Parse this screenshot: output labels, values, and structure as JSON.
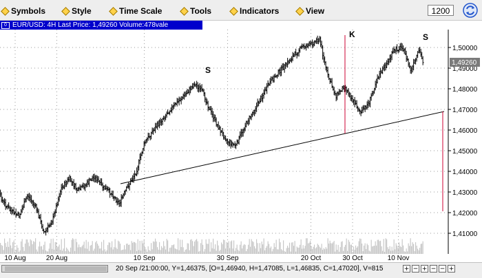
{
  "menu": {
    "items": [
      {
        "label": "Symbols",
        "name": "symbols"
      },
      {
        "label": "Style",
        "name": "style"
      },
      {
        "label": "Time Scale",
        "name": "time-scale"
      },
      {
        "label": "Tools",
        "name": "tools"
      },
      {
        "label": "Indicators",
        "name": "indicators"
      },
      {
        "label": "View",
        "name": "view"
      }
    ],
    "interval_value": "1200"
  },
  "header": {
    "icon": "0",
    "text": "EUR/USD: 4H Last Price: 1,49260 Volume:478vale"
  },
  "annotations": {
    "s_left": "S",
    "k_mid": "K",
    "s_right": "S"
  },
  "price_label": "1,49260",
  "status": {
    "text": "20 Sep /21:00:00,  Y=1,46375, [O=1,46940, H=1,47085, L=1,46835, C=1,47020], V=815"
  },
  "colors": {
    "header_bg": "#0000cc",
    "candle": "#000000",
    "trendline": "#000000",
    "marker": "#cc0033"
  },
  "chart_data": {
    "type": "line",
    "y_ticks": [
      "1,50000",
      "1,49000",
      "1,48000",
      "1,47000",
      "1,46000",
      "1,45000",
      "1,44000",
      "1,43000",
      "1,42000",
      "1,41000"
    ],
    "x_ticks": [
      "10 Aug",
      "20 Aug",
      "10 Sep",
      "30 Sep",
      "20 Oct",
      "30 Oct",
      "10 Nov"
    ],
    "ylim": [
      1.405,
      1.5075
    ],
    "grid": true,
    "points": [
      {
        "x": "03 Aug",
        "y": 1.442
      },
      {
        "x": "05 Aug",
        "y": 1.4355
      },
      {
        "x": "07 Aug",
        "y": 1.4255
      },
      {
        "x": "09 Aug",
        "y": 1.4205
      },
      {
        "x": "11 Aug",
        "y": 1.4185
      },
      {
        "x": "13 Aug",
        "y": 1.4285
      },
      {
        "x": "15 Aug",
        "y": 1.4225
      },
      {
        "x": "17 Aug",
        "y": 1.41
      },
      {
        "x": "19 Aug",
        "y": 1.4165
      },
      {
        "x": "21 Aug",
        "y": 1.4315
      },
      {
        "x": "23 Aug",
        "y": 1.4365
      },
      {
        "x": "25 Aug",
        "y": 1.4305
      },
      {
        "x": "27 Aug",
        "y": 1.4335
      },
      {
        "x": "29 Aug",
        "y": 1.4375
      },
      {
        "x": "31 Aug",
        "y": 1.4325
      },
      {
        "x": "02 Sep",
        "y": 1.4295
      },
      {
        "x": "04 Sep",
        "y": 1.4245
      },
      {
        "x": "06 Sep",
        "y": 1.4325
      },
      {
        "x": "08 Sep",
        "y": 1.4395
      },
      {
        "x": "10 Sep",
        "y": 1.4535
      },
      {
        "x": "12 Sep",
        "y": 1.4595
      },
      {
        "x": "14 Sep",
        "y": 1.4645
      },
      {
        "x": "16 Sep",
        "y": 1.4695
      },
      {
        "x": "18 Sep",
        "y": 1.4735
      },
      {
        "x": "20 Sep",
        "y": 1.4775
      },
      {
        "x": "22 Sep",
        "y": 1.4825
      },
      {
        "x": "24 Sep",
        "y": 1.4785
      },
      {
        "x": "26 Sep",
        "y": 1.4685
      },
      {
        "x": "28 Sep",
        "y": 1.4605
      },
      {
        "x": "30 Sep",
        "y": 1.4545
      },
      {
        "x": "02 Oct",
        "y": 1.4525
      },
      {
        "x": "04 Oct",
        "y": 1.4615
      },
      {
        "x": "06 Oct",
        "y": 1.4685
      },
      {
        "x": "08 Oct",
        "y": 1.4755
      },
      {
        "x": "10 Oct",
        "y": 1.4825
      },
      {
        "x": "12 Oct",
        "y": 1.4875
      },
      {
        "x": "14 Oct",
        "y": 1.4915
      },
      {
        "x": "16 Oct",
        "y": 1.4965
      },
      {
        "x": "18 Oct",
        "y": 1.5005
      },
      {
        "x": "20 Oct",
        "y": 1.5015
      },
      {
        "x": "22 Oct",
        "y": 1.5045
      },
      {
        "x": "24 Oct",
        "y": 1.4865
      },
      {
        "x": "26 Oct",
        "y": 1.4765
      },
      {
        "x": "28 Oct",
        "y": 1.4815
      },
      {
        "x": "30 Oct",
        "y": 1.4745
      },
      {
        "x": "01 Nov",
        "y": 1.4685
      },
      {
        "x": "03 Nov",
        "y": 1.4735
      },
      {
        "x": "05 Nov",
        "y": 1.4855
      },
      {
        "x": "07 Nov",
        "y": 1.4915
      },
      {
        "x": "09 Nov",
        "y": 1.4985
      },
      {
        "x": "11 Nov",
        "y": 1.5005
      },
      {
        "x": "13 Nov",
        "y": 1.4885
      },
      {
        "x": "15 Nov",
        "y": 1.4985
      },
      {
        "x": "16 Nov",
        "y": 1.4926
      }
    ]
  }
}
